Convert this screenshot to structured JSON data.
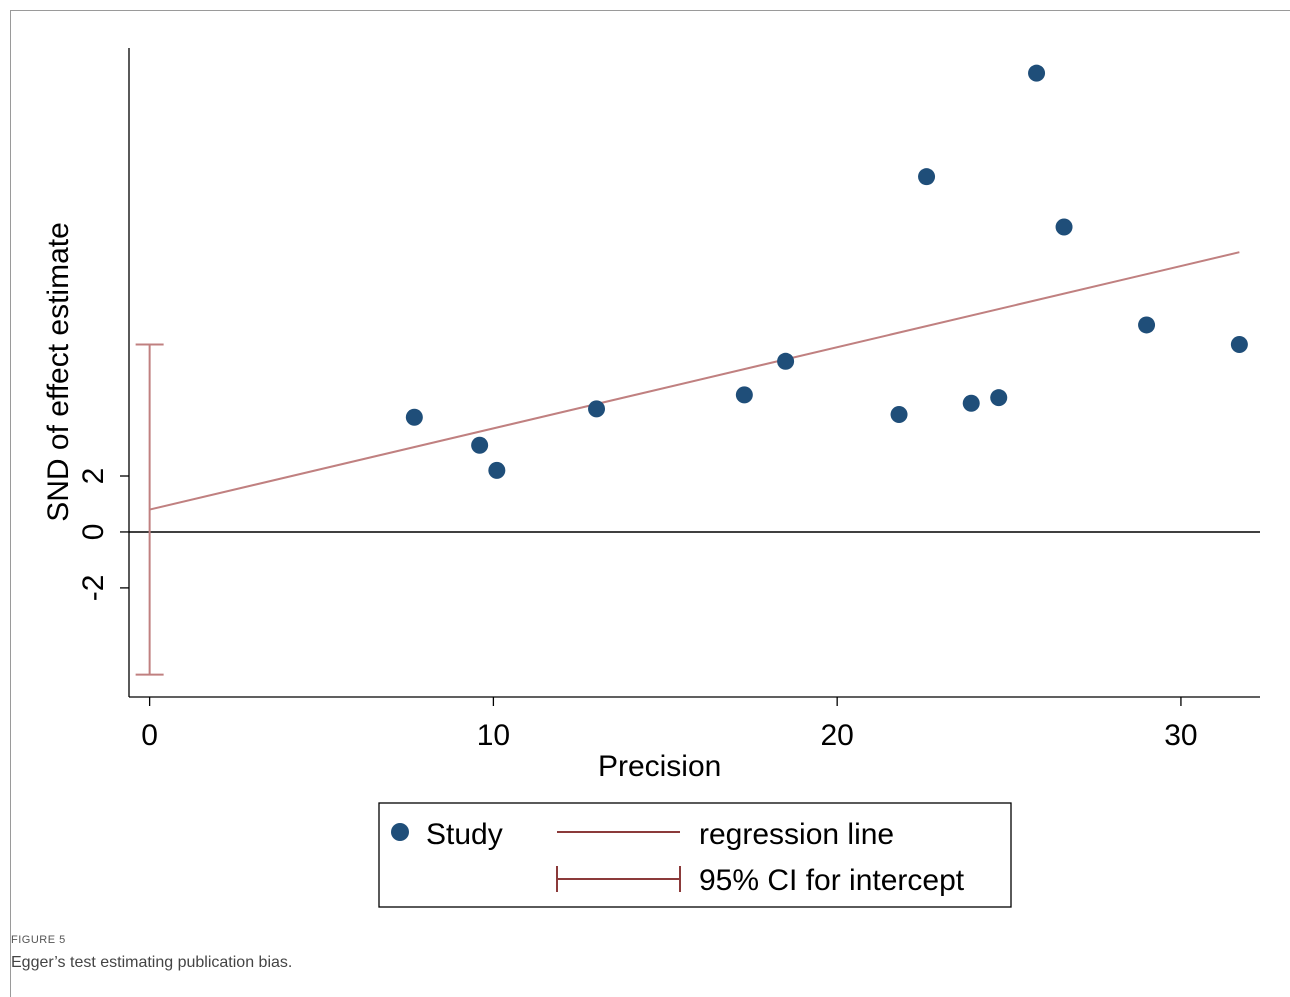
{
  "chart_data": {
    "type": "scatter",
    "xlabel": "Precision",
    "ylabel": "SND of effect estimate",
    "x_ticks": [
      0,
      10,
      20,
      30
    ],
    "y_ticks": [
      -2,
      0,
      2
    ],
    "xlim": [
      -0.6,
      32.3
    ],
    "ylim": [
      -5.9,
      17.3
    ],
    "grid": false,
    "colors": {
      "points": "#1f4e79",
      "regression": "#c08080",
      "ci": "#c08080",
      "zero_line": "#000000"
    },
    "series": [
      {
        "name": "Study",
        "type": "scatter",
        "x": [
          7.7,
          9.6,
          10.1,
          13.0,
          17.3,
          18.5,
          21.8,
          22.6,
          23.9,
          24.7,
          25.8,
          26.6,
          29.0,
          31.7
        ],
        "y": [
          4.1,
          3.1,
          2.2,
          4.4,
          4.9,
          6.1,
          4.2,
          12.7,
          4.6,
          4.8,
          16.4,
          10.9,
          7.4,
          6.7
        ]
      },
      {
        "name": "regression line",
        "type": "line",
        "x": [
          0,
          31.7
        ],
        "y": [
          0.8,
          10.0
        ]
      },
      {
        "name": "95% CI for intercept",
        "type": "errorbar",
        "x": 0,
        "low": -5.1,
        "high": 6.7
      }
    ],
    "legend": {
      "position": "bottom",
      "items": [
        "Study",
        "regression line",
        "95% CI for intercept"
      ]
    }
  },
  "caption": {
    "label": "FIGURE 5",
    "text": "Egger’s test estimating publication bias."
  }
}
